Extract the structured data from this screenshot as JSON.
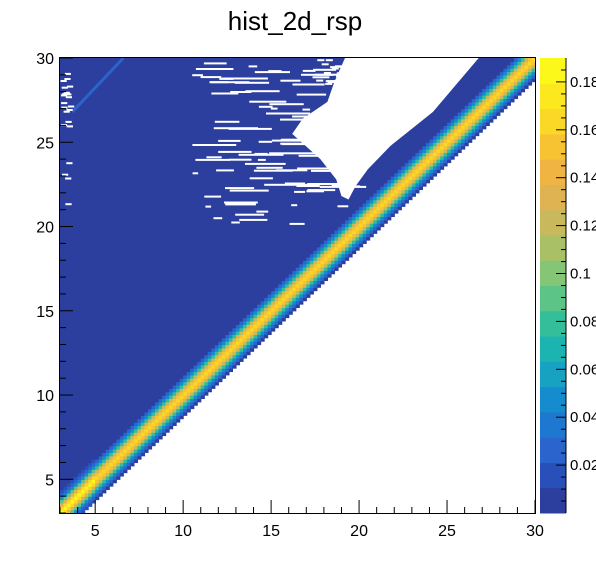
{
  "chart_data": {
    "type": "heatmap",
    "title": "hist_2d_rsp",
    "xlabel": "",
    "ylabel": "",
    "xlim": [
      3,
      30
    ],
    "ylim": [
      3,
      30
    ],
    "x_ticks": [
      5,
      10,
      15,
      20,
      25,
      30
    ],
    "y_ticks": [
      5,
      10,
      15,
      20,
      25,
      30
    ],
    "x_tick_labels": [
      "5",
      "10",
      "15",
      "20",
      "25",
      "30"
    ],
    "y_tick_labels": [
      "5",
      "10",
      "15",
      "20",
      "25",
      "30"
    ],
    "colorbar": {
      "range": [
        0,
        0.19
      ],
      "tick_values": [
        0.02,
        0.04,
        0.06,
        0.08,
        0.1,
        0.12,
        0.14,
        0.16,
        0.18
      ],
      "tick_labels": [
        "0.02",
        "0.04",
        "0.06",
        "0.08",
        "0.1",
        "0.12",
        "0.14",
        "0.16",
        "0.18"
      ],
      "palette": [
        "#2c3f9e",
        "#2850b8",
        "#2a64cc",
        "#1f78d0",
        "#158ccd",
        "#17a1c2",
        "#1bb4b0",
        "#32bf9a",
        "#5cc487",
        "#85c576",
        "#a9c067",
        "#c8b95d",
        "#e0b352",
        "#f0b443",
        "#f8c333",
        "#fbd726",
        "#fbe81e",
        "#fcf81a"
      ]
    },
    "band": {
      "description": "response concentrated on diagonal y = x",
      "diagonal_peak": 0.16,
      "low_end_peak": 0.18,
      "width_units": 1.3
    },
    "empty_regions": [
      {
        "label": "below diagonal",
        "value": 0
      },
      {
        "label": "upper triangle",
        "value": 0
      }
    ]
  }
}
